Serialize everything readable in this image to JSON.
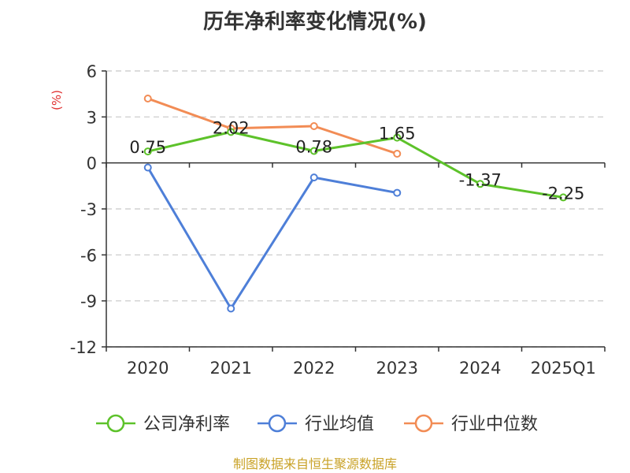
{
  "chart_data": {
    "type": "line",
    "title": "历年净利率变化情况(%)",
    "ylabel": "(%)",
    "categories": [
      "2020",
      "2021",
      "2022",
      "2023",
      "2024",
      "2025Q1"
    ],
    "ylim": [
      -12,
      6
    ],
    "yticks": [
      6,
      3,
      0,
      -3,
      -6,
      -9,
      -12
    ],
    "grid": true,
    "legend_position": "bottom",
    "series": [
      {
        "name": "公司净利率",
        "color": "#5dc22a",
        "values": [
          0.75,
          2.02,
          0.78,
          1.65,
          -1.37,
          -2.25
        ],
        "labels": [
          "0.75",
          "2.02",
          "0.78",
          "1.65",
          "-1.37",
          "-2.25"
        ]
      },
      {
        "name": "行业均值",
        "color": "#4e7fd8",
        "values": [
          -0.3,
          -9.5,
          -0.95,
          -1.95,
          null,
          null
        ]
      },
      {
        "name": "行业中位数",
        "color": "#f28c55",
        "values": [
          4.2,
          2.25,
          2.4,
          0.6,
          null,
          null
        ]
      }
    ]
  },
  "colors": {
    "ylabel": "#e03030",
    "source": "#c9a227"
  },
  "source_text": "制图数据来自恒生聚源数据库"
}
